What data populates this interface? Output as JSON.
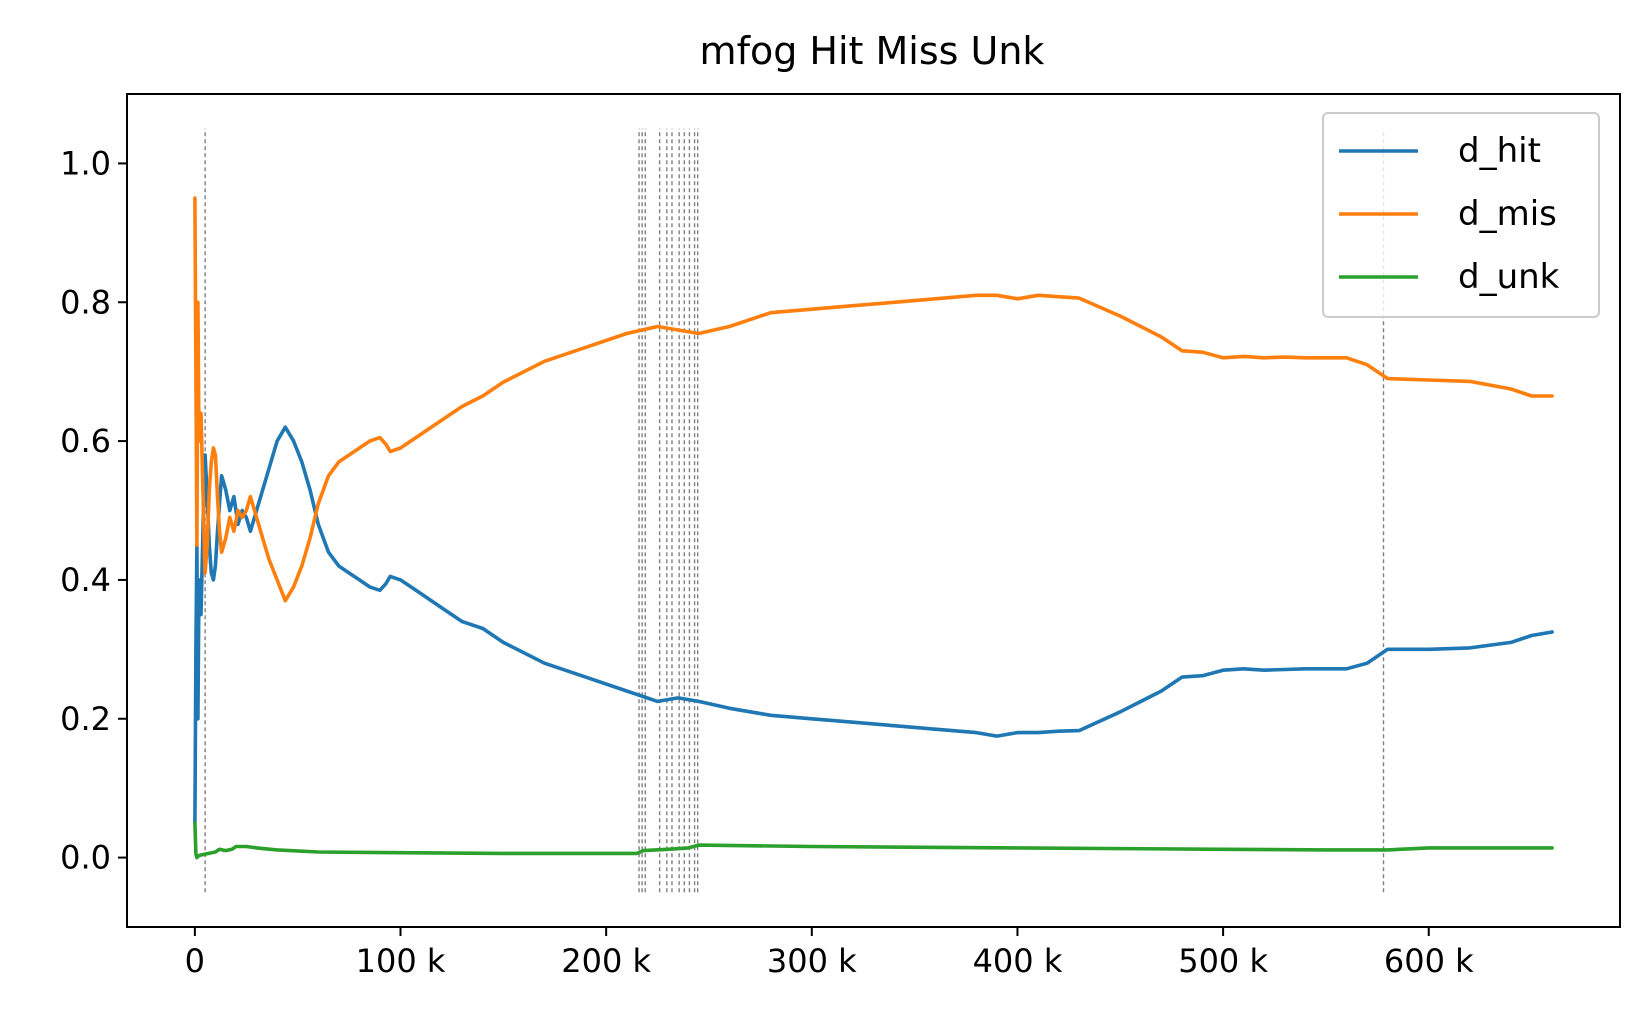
{
  "chart_data": {
    "type": "line",
    "title": "mfog Hit Miss Unk",
    "xlabel": "",
    "ylabel": "",
    "xlim": [
      -33000,
      693000
    ],
    "ylim": [
      -0.1,
      1.1
    ],
    "x_ticks": [
      {
        "value": 0,
        "label": "0"
      },
      {
        "value": 100000,
        "label": "100 k"
      },
      {
        "value": 200000,
        "label": "200 k"
      },
      {
        "value": 300000,
        "label": "300 k"
      },
      {
        "value": 400000,
        "label": "400 k"
      },
      {
        "value": 500000,
        "label": "500 k"
      },
      {
        "value": 600000,
        "label": "600 k"
      }
    ],
    "y_ticks": [
      {
        "value": 0.0,
        "label": "0.0"
      },
      {
        "value": 0.2,
        "label": "0.2"
      },
      {
        "value": 0.4,
        "label": "0.4"
      },
      {
        "value": 0.6,
        "label": "0.6"
      },
      {
        "value": 0.8,
        "label": "0.8"
      },
      {
        "value": 1.0,
        "label": "1.0"
      }
    ],
    "grid": false,
    "legend_position": "top-right",
    "vlines": {
      "x": [
        5000,
        216000,
        217500,
        219000,
        226000,
        229500,
        232000,
        235500,
        238000,
        240500,
        243000,
        244500,
        578000
      ],
      "ymin": -0.05,
      "ymax": 1.05,
      "color": "#808080",
      "style": "dashed"
    },
    "series": [
      {
        "name": "d_hit",
        "color": "#1f77b4",
        "x": [
          0,
          500,
          1000,
          1500,
          2000,
          3000,
          4000,
          5000,
          6000,
          7000,
          8000,
          9000,
          10000,
          11000,
          12000,
          13000,
          15000,
          17000,
          19000,
          21000,
          23000,
          25000,
          27000,
          29000,
          31000,
          33000,
          36000,
          40000,
          44000,
          48000,
          52000,
          56000,
          60000,
          65000,
          70000,
          75000,
          80000,
          85000,
          90000,
          93000,
          95000,
          100000,
          110000,
          120000,
          130000,
          140000,
          150000,
          170000,
          190000,
          210000,
          225000,
          235000,
          245000,
          260000,
          280000,
          300000,
          320000,
          340000,
          360000,
          380000,
          390000,
          400000,
          410000,
          420000,
          430000,
          450000,
          470000,
          480000,
          490000,
          500000,
          510000,
          520000,
          530000,
          540000,
          550000,
          560000,
          570000,
          580000,
          600000,
          620000,
          640000,
          650000,
          660000
        ],
        "values": [
          0.05,
          0.3,
          0.45,
          0.2,
          0.4,
          0.35,
          0.48,
          0.58,
          0.52,
          0.45,
          0.41,
          0.4,
          0.42,
          0.47,
          0.51,
          0.55,
          0.53,
          0.5,
          0.52,
          0.48,
          0.5,
          0.49,
          0.47,
          0.49,
          0.51,
          0.53,
          0.56,
          0.6,
          0.62,
          0.6,
          0.57,
          0.53,
          0.48,
          0.44,
          0.42,
          0.41,
          0.4,
          0.39,
          0.385,
          0.395,
          0.405,
          0.4,
          0.38,
          0.36,
          0.34,
          0.33,
          0.31,
          0.28,
          0.26,
          0.24,
          0.225,
          0.23,
          0.225,
          0.215,
          0.205,
          0.2,
          0.195,
          0.19,
          0.185,
          0.18,
          0.175,
          0.18,
          0.18,
          0.182,
          0.183,
          0.21,
          0.24,
          0.26,
          0.262,
          0.27,
          0.272,
          0.27,
          0.271,
          0.272,
          0.272,
          0.272,
          0.28,
          0.3,
          0.3,
          0.302,
          0.31,
          0.32,
          0.325
        ]
      },
      {
        "name": "d_mis",
        "color": "#ff7f0e",
        "x": [
          0,
          500,
          1000,
          1500,
          2000,
          3000,
          4000,
          5000,
          6000,
          7000,
          8000,
          9000,
          10000,
          11000,
          12000,
          13000,
          15000,
          17000,
          19000,
          21000,
          23000,
          25000,
          27000,
          29000,
          31000,
          33000,
          36000,
          40000,
          44000,
          48000,
          52000,
          56000,
          60000,
          65000,
          70000,
          75000,
          80000,
          85000,
          90000,
          93000,
          95000,
          100000,
          110000,
          120000,
          130000,
          140000,
          150000,
          170000,
          190000,
          210000,
          225000,
          235000,
          245000,
          260000,
          280000,
          300000,
          320000,
          340000,
          360000,
          380000,
          390000,
          400000,
          410000,
          420000,
          430000,
          450000,
          470000,
          480000,
          490000,
          500000,
          510000,
          520000,
          530000,
          540000,
          550000,
          560000,
          570000,
          580000,
          600000,
          620000,
          640000,
          650000,
          660000
        ],
        "values": [
          0.95,
          0.7,
          0.45,
          0.8,
          0.6,
          0.64,
          0.52,
          0.41,
          0.45,
          0.53,
          0.57,
          0.59,
          0.58,
          0.52,
          0.47,
          0.44,
          0.46,
          0.49,
          0.47,
          0.5,
          0.49,
          0.5,
          0.52,
          0.5,
          0.48,
          0.46,
          0.43,
          0.4,
          0.37,
          0.39,
          0.42,
          0.46,
          0.51,
          0.55,
          0.57,
          0.58,
          0.59,
          0.6,
          0.605,
          0.595,
          0.585,
          0.59,
          0.61,
          0.63,
          0.65,
          0.665,
          0.685,
          0.715,
          0.735,
          0.755,
          0.765,
          0.76,
          0.755,
          0.765,
          0.785,
          0.79,
          0.795,
          0.8,
          0.805,
          0.81,
          0.81,
          0.805,
          0.81,
          0.808,
          0.806,
          0.78,
          0.75,
          0.73,
          0.728,
          0.72,
          0.722,
          0.72,
          0.721,
          0.72,
          0.72,
          0.72,
          0.71,
          0.69,
          0.688,
          0.686,
          0.675,
          0.665,
          0.665
        ]
      },
      {
        "name": "d_unk",
        "color": "#2ca02c",
        "x": [
          0,
          500,
          1000,
          2000,
          5000,
          10000,
          12000,
          15000,
          18000,
          20000,
          25000,
          30000,
          40000,
          60000,
          100000,
          150000,
          200000,
          215000,
          218000,
          230000,
          240000,
          245000,
          300000,
          400000,
          500000,
          550000,
          580000,
          600000,
          660000
        ],
        "values": [
          0.05,
          0.005,
          0.0,
          0.003,
          0.005,
          0.008,
          0.012,
          0.01,
          0.012,
          0.016,
          0.016,
          0.014,
          0.011,
          0.008,
          0.007,
          0.006,
          0.006,
          0.006,
          0.01,
          0.012,
          0.014,
          0.018,
          0.016,
          0.014,
          0.012,
          0.011,
          0.011,
          0.014,
          0.014
        ]
      }
    ]
  }
}
